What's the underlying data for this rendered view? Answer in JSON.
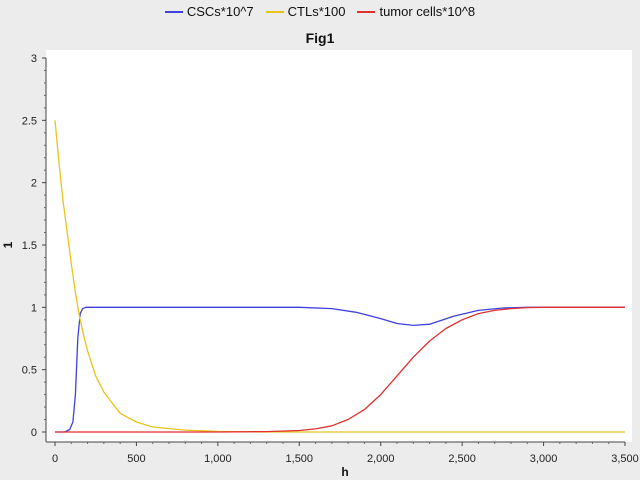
{
  "chart_data": {
    "type": "line",
    "title": "Fig1",
    "xlabel": "h",
    "ylabel": "1",
    "xlim": [
      0,
      3500
    ],
    "ylim": [
      0,
      3
    ],
    "x_ticks": [
      0,
      500,
      1000,
      1500,
      2000,
      2500,
      3000,
      3500
    ],
    "x_tick_labels": [
      "0",
      "500",
      "1,000",
      "1,500",
      "2,000",
      "2,500",
      "3,000",
      "3,500"
    ],
    "y_ticks": [
      0,
      0.5,
      1,
      1.5,
      2,
      2.5,
      3
    ],
    "y_tick_labels": [
      "0",
      "0.5",
      "1",
      "1.5",
      "2",
      "2.5",
      "3"
    ],
    "grid": false,
    "legend_position": "top-center",
    "series": [
      {
        "name": "CSCs*10^7",
        "color": "#3f3fe0",
        "x": [
          0,
          60,
          90,
          110,
          125,
          140,
          155,
          170,
          190,
          220,
          300,
          600,
          1000,
          1300,
          1500,
          1700,
          1850,
          2000,
          2100,
          2200,
          2300,
          2450,
          2600,
          2750,
          2900,
          3100,
          3300,
          3500
        ],
        "y": [
          0.0,
          0.0,
          0.02,
          0.08,
          0.3,
          0.75,
          0.95,
          0.99,
          1.0,
          1.0,
          1.0,
          1.0,
          1.0,
          1.0,
          1.0,
          0.99,
          0.96,
          0.91,
          0.87,
          0.855,
          0.865,
          0.93,
          0.975,
          0.995,
          1.0,
          1.0,
          1.0,
          1.0
        ]
      },
      {
        "name": "CTLs*100",
        "color": "#e8c41a",
        "x": [
          0,
          25,
          50,
          75,
          100,
          125,
          150,
          175,
          200,
          250,
          300,
          400,
          500,
          600,
          800,
          1000,
          1300,
          1600,
          2000,
          2500,
          3000,
          3500
        ],
        "y": [
          2.5,
          2.15,
          1.85,
          1.6,
          1.35,
          1.12,
          0.93,
          0.78,
          0.65,
          0.45,
          0.32,
          0.15,
          0.08,
          0.04,
          0.015,
          0.005,
          0.0,
          0.0,
          0.0,
          0.0,
          0.0,
          0.0
        ]
      },
      {
        "name": "tumor cells*10^8",
        "color": "#e03030",
        "x": [
          0,
          500,
          1000,
          1300,
          1500,
          1600,
          1700,
          1800,
          1900,
          2000,
          2100,
          2200,
          2300,
          2400,
          2500,
          2600,
          2700,
          2800,
          2900,
          3000,
          3200,
          3500
        ],
        "y": [
          0.0,
          0.0,
          0.0,
          0.003,
          0.012,
          0.025,
          0.05,
          0.1,
          0.18,
          0.3,
          0.45,
          0.6,
          0.73,
          0.83,
          0.9,
          0.95,
          0.975,
          0.99,
          0.998,
          1.0,
          1.0,
          1.0
        ]
      }
    ]
  }
}
